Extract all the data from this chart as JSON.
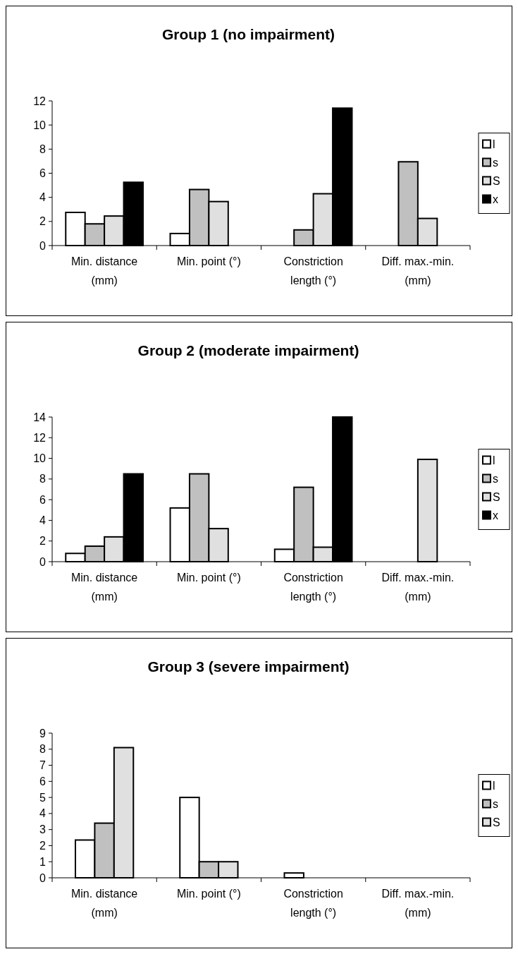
{
  "chart_data": [
    {
      "type": "bar",
      "title": "Group 1 (no impairment)",
      "categories": [
        "Min. distance (mm)",
        "Min. point (°)",
        "Constriction length (°)",
        "Diff. max.-min. (mm)"
      ],
      "series": [
        {
          "name": "l",
          "color": "#ffffff",
          "values": [
            2.75,
            1.0,
            null,
            null
          ]
        },
        {
          "name": "s",
          "color": "#c0c0c0",
          "values": [
            1.8,
            4.65,
            1.3,
            6.95
          ]
        },
        {
          "name": "S",
          "color": "#e0e0e0",
          "values": [
            2.45,
            3.65,
            4.3,
            2.25
          ]
        },
        {
          "name": "x",
          "color": "#000000",
          "values": [
            5.25,
            null,
            11.4,
            null
          ]
        }
      ],
      "ylim": [
        0,
        12
      ],
      "yticks": [
        0,
        2,
        4,
        6,
        8,
        10,
        12
      ],
      "grid": false,
      "legend": "right"
    },
    {
      "type": "bar",
      "title": "Group 2 (moderate impairment)",
      "categories": [
        "Min. distance (mm)",
        "Min. point (°)",
        "Constriction length (°)",
        "Diff. max.-min. (mm)"
      ],
      "series": [
        {
          "name": "l",
          "color": "#ffffff",
          "values": [
            0.8,
            5.2,
            1.2,
            null
          ]
        },
        {
          "name": "s",
          "color": "#c0c0c0",
          "values": [
            1.5,
            8.5,
            7.2,
            null
          ]
        },
        {
          "name": "S",
          "color": "#e0e0e0",
          "values": [
            2.4,
            3.2,
            1.4,
            9.9
          ]
        },
        {
          "name": "x",
          "color": "#000000",
          "values": [
            8.5,
            null,
            14,
            null
          ]
        }
      ],
      "ylim": [
        0,
        14
      ],
      "yticks": [
        0,
        2,
        4,
        6,
        8,
        10,
        12,
        14
      ],
      "grid": false,
      "legend": "right"
    },
    {
      "type": "bar",
      "title": "Group 3 (severe impairment)",
      "categories": [
        "Min. distance (mm)",
        "Min. point (°)",
        "Constriction length (°)",
        "Diff. max.-min. (mm)"
      ],
      "series": [
        {
          "name": "l",
          "color": "#ffffff",
          "values": [
            2.35,
            5.0,
            0.3,
            null
          ]
        },
        {
          "name": "s",
          "color": "#c0c0c0",
          "values": [
            3.4,
            1.0,
            null,
            null
          ]
        },
        {
          "name": "S",
          "color": "#e0e0e0",
          "values": [
            8.1,
            1.0,
            null,
            null
          ]
        }
      ],
      "ylim": [
        0,
        9
      ],
      "yticks": [
        0,
        1,
        2,
        3,
        4,
        5,
        6,
        7,
        8,
        9
      ],
      "grid": false,
      "legend": "right"
    }
  ]
}
